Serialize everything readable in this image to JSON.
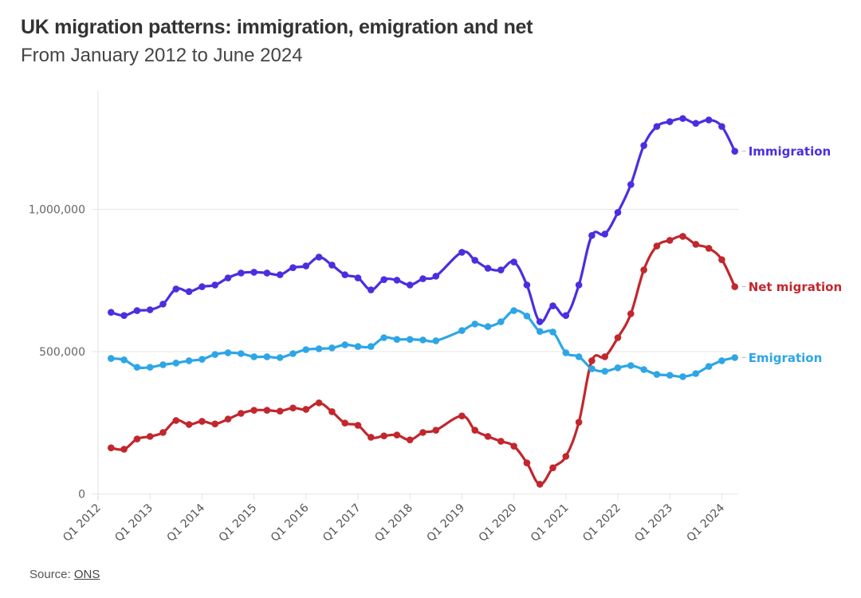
{
  "chart_data": {
    "type": "line",
    "title": "UK migration patterns: immigration, emigration and net",
    "subtitle": "From January 2012 to June 2024",
    "xlabel": "",
    "ylabel": "",
    "ylim": [
      0,
      1400000
    ],
    "grid": true,
    "legend": "direct labels at line ends (right)",
    "yticks": [
      0,
      500000,
      1000000
    ],
    "ytick_labels": [
      "0",
      "500,000",
      "1,000,000"
    ],
    "xtick_labels": [
      "Q1 2012",
      "Q1 2013",
      "Q1 2014",
      "Q1 2015",
      "Q1 2016",
      "Q1 2017",
      "Q1 2018",
      "Q1 2019",
      "Q1 2020",
      "Q1 2021",
      "Q1 2022",
      "Q1 2023",
      "Q1 2024"
    ],
    "x": [
      "Q2 2012",
      "Q3 2012",
      "Q4 2012",
      "Q1 2013",
      "Q2 2013",
      "Q3 2013",
      "Q4 2013",
      "Q1 2014",
      "Q2 2014",
      "Q3 2014",
      "Q4 2014",
      "Q1 2015",
      "Q2 2015",
      "Q3 2015",
      "Q4 2015",
      "Q1 2016",
      "Q2 2016",
      "Q3 2016",
      "Q4 2016",
      "Q1 2017",
      "Q2 2017",
      "Q3 2017",
      "Q4 2017",
      "Q1 2018",
      "Q2 2018",
      "Q3 2018",
      "Q4 2018",
      "Q1 2019",
      "Q2 2019",
      "Q3 2019",
      "Q4 2019",
      "Q1 2020",
      "Q2 2020",
      "Q3 2020",
      "Q4 2020",
      "Q1 2021",
      "Q2 2021",
      "Q3 2021",
      "Q4 2021",
      "Q1 2022",
      "Q2 2022",
      "Q3 2022",
      "Q4 2022",
      "Q1 2023",
      "Q2 2023",
      "Q3 2023",
      "Q4 2023",
      "Q1 2024",
      "Q2 2024"
    ],
    "series": [
      {
        "name": "Immigration",
        "color": "#4a2fe0",
        "values": [
          638000,
          627000,
          644000,
          647000,
          667000,
          720000,
          711000,
          728000,
          734000,
          759000,
          776000,
          779000,
          776000,
          770000,
          795000,
          801000,
          832000,
          804000,
          770000,
          759000,
          717000,
          753000,
          751000,
          734000,
          756000,
          765000,
          null,
          849000,
          821000,
          793000,
          787000,
          815000,
          734000,
          605000,
          661000,
          627000,
          734000,
          908000,
          913000,
          989000,
          1087000,
          1224000,
          1291000,
          1308000,
          1319000,
          1302000,
          1314000,
          1291000,
          1204000
        ]
      },
      {
        "name": "Net migration",
        "color": "#c1272d",
        "values": [
          162000,
          157000,
          193000,
          202000,
          216000,
          258000,
          244000,
          255000,
          246000,
          263000,
          283000,
          294000,
          294000,
          291000,
          302000,
          297000,
          320000,
          289000,
          249000,
          241000,
          199000,
          204000,
          207000,
          190000,
          216000,
          224000,
          null,
          274000,
          224000,
          202000,
          185000,
          168000,
          109000,
          34000,
          92000,
          132000,
          252000,
          468000,
          482000,
          549000,
          633000,
          787000,
          871000,
          891000,
          905000,
          877000,
          863000,
          823000,
          728000
        ]
      },
      {
        "name": "Emigration",
        "color": "#2ea6e6",
        "values": [
          476000,
          471000,
          445000,
          445000,
          454000,
          460000,
          468000,
          473000,
          490000,
          496000,
          493000,
          482000,
          482000,
          479000,
          493000,
          507000,
          510000,
          513000,
          524000,
          518000,
          518000,
          549000,
          543000,
          543000,
          541000,
          538000,
          null,
          574000,
          597000,
          588000,
          605000,
          644000,
          625000,
          571000,
          569000,
          496000,
          482000,
          440000,
          431000,
          443000,
          451000,
          437000,
          420000,
          417000,
          412000,
          423000,
          448000,
          468000,
          479000
        ]
      }
    ]
  },
  "source": {
    "prefix": "Source: ",
    "link_text": "ONS"
  }
}
